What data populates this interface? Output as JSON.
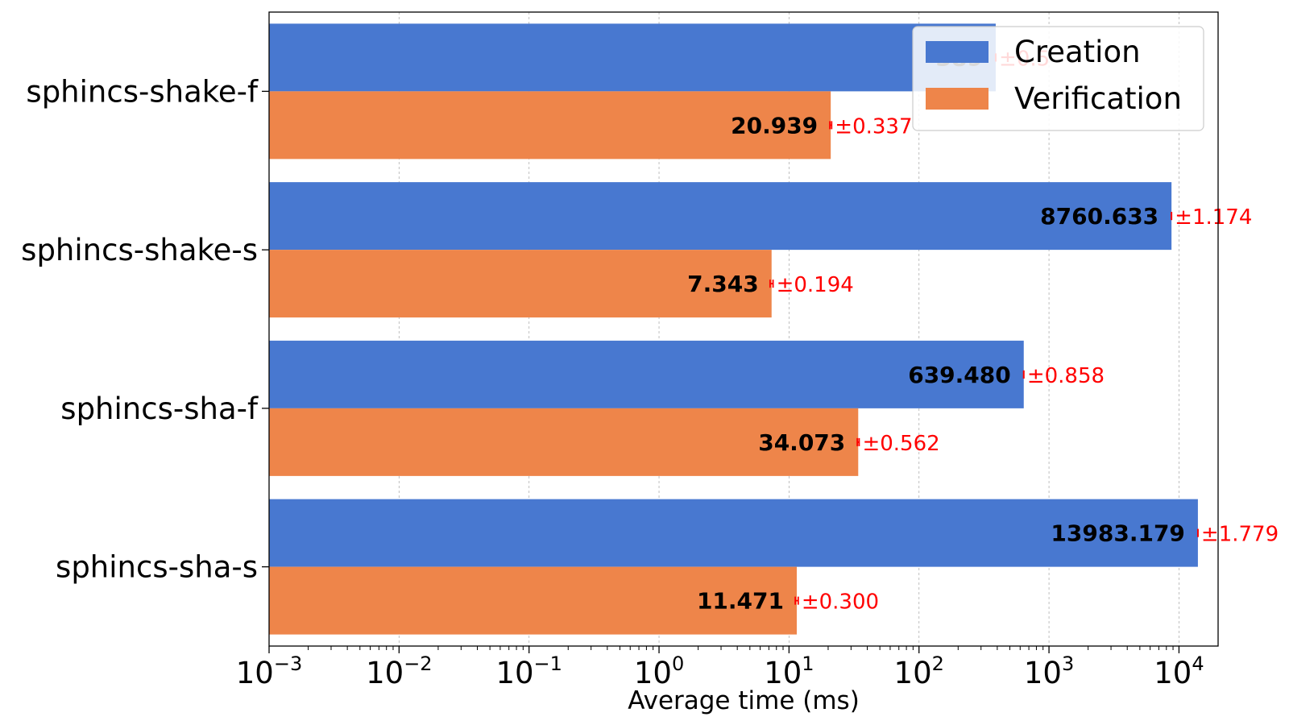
{
  "chart_data": {
    "type": "bar",
    "orientation": "horizontal",
    "x_scale": "log",
    "xlabel": "Average time (ms)",
    "ylabel": "",
    "title": "",
    "xlim": [
      0.001,
      20000
    ],
    "x_ticks": [
      {
        "base": "10",
        "exp": "−3",
        "value": 0.001
      },
      {
        "base": "10",
        "exp": "−2",
        "value": 0.01
      },
      {
        "base": "10",
        "exp": "−1",
        "value": 0.1
      },
      {
        "base": "10",
        "exp": "0",
        "value": 1
      },
      {
        "base": "10",
        "exp": "1",
        "value": 10
      },
      {
        "base": "10",
        "exp": "2",
        "value": 100
      },
      {
        "base": "10",
        "exp": "3",
        "value": 1000
      },
      {
        "base": "10",
        "exp": "4",
        "value": 10000
      }
    ],
    "categories": [
      "sphincs-shake-f",
      "sphincs-shake-s",
      "sphincs-sha-f",
      "sphincs-sha-s"
    ],
    "series": [
      {
        "name": "Creation",
        "color": "#4878d0",
        "values": [
          389.19,
          8760.633,
          639.48,
          13983.179
        ],
        "value_labels": [
          "389",
          "8760.633",
          "639.480",
          "13983.179"
        ],
        "errors": [
          0.5,
          1.174,
          0.858,
          1.779
        ],
        "error_labels": [
          "±0.5",
          "±1.174",
          "±0.858",
          "±1.779"
        ]
      },
      {
        "name": "Verification",
        "color": "#ee854a",
        "values": [
          20.939,
          7.343,
          34.073,
          11.471
        ],
        "value_labels": [
          "20.939",
          "7.343",
          "34.073",
          "11.471"
        ],
        "errors": [
          0.337,
          0.194,
          0.562,
          0.3
        ],
        "error_labels": [
          "±0.337",
          "±0.194",
          "±0.562",
          "±0.300"
        ]
      }
    ],
    "legend": {
      "position": "top-right"
    },
    "grid": {
      "x": true,
      "y": false,
      "style": "dotted"
    },
    "error_color": "#ff0000"
  }
}
